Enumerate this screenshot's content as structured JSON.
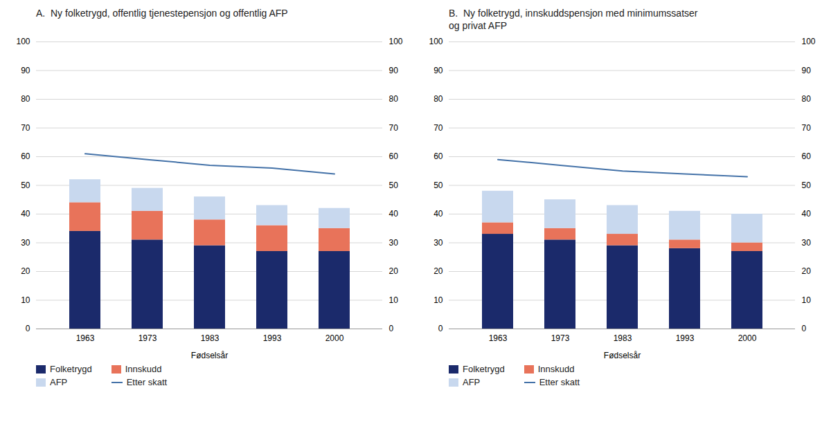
{
  "chart_data": [
    {
      "type": "bar",
      "stacked": true,
      "title": "A.  Ny folketrygd, offentlig tjenestepensjon og offentlig AFP",
      "xlabel": "Fødselsår",
      "categories": [
        "1963",
        "1973",
        "1983",
        "1993",
        "2000"
      ],
      "series": [
        {
          "name": "Folketrygd",
          "color": "#1b2a6b",
          "values": [
            34,
            31,
            29,
            27,
            27
          ]
        },
        {
          "name": "Innskudd",
          "color": "#e8735a",
          "values": [
            10,
            10,
            9,
            9,
            8
          ]
        },
        {
          "name": "AFP",
          "color": "#c8d8ee",
          "values": [
            8,
            8,
            8,
            7,
            7
          ]
        },
        {
          "name": "Etter skatt",
          "type": "line",
          "color": "#4472a8",
          "values": [
            61,
            59,
            57,
            56,
            54
          ]
        }
      ],
      "ylim": [
        0,
        100
      ],
      "yticks": [
        0,
        10,
        20,
        30,
        40,
        50,
        60,
        70,
        80,
        90,
        100
      ],
      "y2lim": [
        0,
        100
      ],
      "y2ticks": [
        0,
        10,
        20,
        30,
        40,
        50,
        60,
        70,
        80,
        90,
        100
      ],
      "grid": true,
      "legend": "bottom"
    },
    {
      "type": "bar",
      "stacked": true,
      "title": "B.  Ny folketrygd, innskuddspensjon med minimumssatser\nog privat AFP",
      "xlabel": "Fødselsår",
      "categories": [
        "1963",
        "1973",
        "1983",
        "1993",
        "2000"
      ],
      "series": [
        {
          "name": "Folketrygd",
          "color": "#1b2a6b",
          "values": [
            33,
            31,
            29,
            28,
            27
          ]
        },
        {
          "name": "Innskudd",
          "color": "#e8735a",
          "values": [
            4,
            4,
            4,
            3,
            3
          ]
        },
        {
          "name": "AFP",
          "color": "#c8d8ee",
          "values": [
            11,
            10,
            10,
            10,
            10
          ]
        },
        {
          "name": "Etter skatt",
          "type": "line",
          "color": "#4472a8",
          "values": [
            59,
            57,
            55,
            54,
            53
          ]
        }
      ],
      "ylim": [
        0,
        100
      ],
      "yticks": [
        0,
        10,
        20,
        30,
        40,
        50,
        60,
        70,
        80,
        90,
        100
      ],
      "y2lim": [
        0,
        100
      ],
      "y2ticks": [
        0,
        10,
        20,
        30,
        40,
        50,
        60,
        70,
        80,
        90,
        100
      ],
      "grid": true,
      "legend": "bottom"
    }
  ]
}
